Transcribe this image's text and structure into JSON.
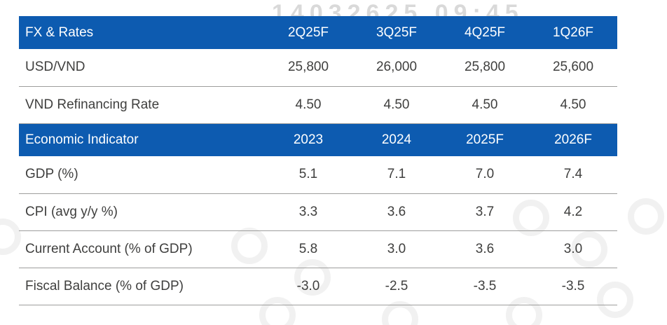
{
  "colors": {
    "header_bg": "#0d5bb0",
    "header_text": "#ffffff",
    "body_text": "#3f3f3e",
    "divider": "#9d9d9c"
  },
  "watermark": {
    "text": "14032625 09:45"
  },
  "chart_data": {
    "type": "table",
    "sections": [
      {
        "header": {
          "label": "FX & Rates",
          "columns": [
            "2Q25F",
            "3Q25F",
            "4Q25F",
            "1Q26F"
          ]
        },
        "rows": [
          {
            "label": "USD/VND",
            "values": [
              "25,800",
              "26,000",
              "25,800",
              "25,600"
            ]
          },
          {
            "label": "VND Refinancing Rate",
            "values": [
              "4.50",
              "4.50",
              "4.50",
              "4.50"
            ]
          }
        ]
      },
      {
        "header": {
          "label": "Economic Indicator",
          "columns": [
            "2023",
            "2024",
            "2025F",
            "2026F"
          ]
        },
        "rows": [
          {
            "label": "GDP (%)",
            "values": [
              "5.1",
              "7.1",
              "7.0",
              "7.4"
            ]
          },
          {
            "label": "CPI (avg y/y %)",
            "values": [
              "3.3",
              "3.6",
              "3.7",
              "4.2"
            ]
          },
          {
            "label": "Current Account (% of GDP)",
            "values": [
              "5.8",
              "3.0",
              "3.6",
              "3.0"
            ]
          },
          {
            "label": "Fiscal Balance (% of GDP)",
            "values": [
              "-3.0",
              "-2.5",
              "-3.5",
              "-3.5"
            ]
          }
        ]
      }
    ]
  }
}
